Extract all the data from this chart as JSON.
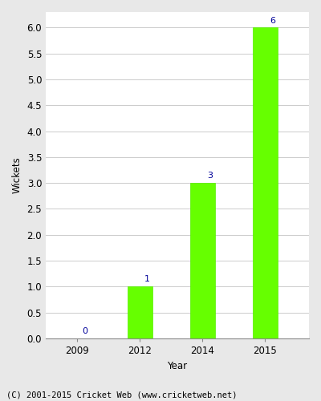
{
  "title": "",
  "xlabel": "Year",
  "ylabel": "Wickets",
  "categories": [
    "2009",
    "2012",
    "2014",
    "2015"
  ],
  "values": [
    0,
    1,
    3,
    6
  ],
  "bar_color": "#66ff00",
  "bar_edge_color": "#55ee00",
  "annotation_color": "#000099",
  "annotation_fontsize": 8,
  "ylim": [
    0,
    6.3
  ],
  "yticks": [
    0.0,
    0.5,
    1.0,
    1.5,
    2.0,
    2.5,
    3.0,
    3.5,
    4.0,
    4.5,
    5.0,
    5.5,
    6.0
  ],
  "grid_color": "#cccccc",
  "background_color": "#e8e8e8",
  "plot_bg_color": "#ffffff",
  "tick_label_fontsize": 8.5,
  "axis_label_fontsize": 8.5,
  "footer_text": "(C) 2001-2015 Cricket Web (www.cricketweb.net)",
  "footer_fontsize": 7.5,
  "bar_width": 0.4,
  "x_positions": [
    0,
    1,
    2,
    3
  ],
  "xlim": [
    -0.5,
    3.7
  ]
}
